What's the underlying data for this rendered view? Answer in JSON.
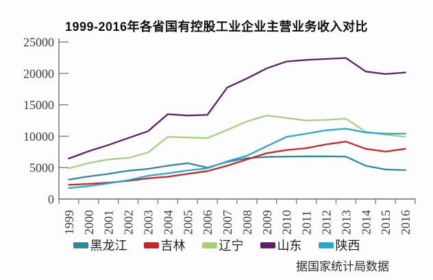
{
  "title": "1999-2016年各省国有控股工业企业主营业务收入对比",
  "source_note": "据国家统计局数据",
  "chart_data": {
    "type": "line",
    "x": [
      "1999",
      "2000",
      "2001",
      "2002",
      "2003",
      "2004",
      "2005",
      "2006",
      "2007",
      "2008",
      "2009",
      "2010",
      "2011",
      "2012",
      "2013",
      "2014",
      "2015",
      "2016"
    ],
    "ylim": [
      0,
      25000
    ],
    "yticks": [
      0,
      5000,
      10000,
      15000,
      20000,
      25000
    ],
    "grid": false,
    "legend_position": "bottom",
    "series": [
      {
        "name": "黑龙江",
        "slug": "heilongjiang",
        "color": "#2e8b96",
        "values": [
          3100,
          3600,
          4000,
          4500,
          4800,
          5300,
          5700,
          5000,
          5900,
          6500,
          6700,
          6750,
          6800,
          6800,
          6750,
          5300,
          4700,
          4600
        ]
      },
      {
        "name": "吉林",
        "slug": "jilin",
        "color": "#c9242b",
        "values": [
          2250,
          2400,
          2600,
          2900,
          3300,
          3550,
          4000,
          4450,
          5300,
          6300,
          7300,
          7800,
          8100,
          8700,
          9150,
          8000,
          7550,
          8000
        ]
      },
      {
        "name": "辽宁",
        "slug": "liaoning",
        "color": "#a9cd80",
        "values": [
          4900,
          5700,
          6300,
          6550,
          7400,
          9900,
          9800,
          9700,
          11000,
          12350,
          13300,
          12900,
          12500,
          12600,
          12800,
          10700,
          10250,
          9900
        ]
      },
      {
        "name": "山东",
        "slug": "shandong",
        "color": "#5a2166",
        "values": [
          6450,
          7600,
          8600,
          9700,
          10800,
          13500,
          13300,
          13400,
          17750,
          19200,
          20800,
          21900,
          22150,
          22300,
          22450,
          20300,
          19900,
          20150
        ]
      },
      {
        "name": "陕西",
        "slug": "shaanxi",
        "color": "#2aa7d1",
        "values": [
          1750,
          2050,
          2500,
          3000,
          3700,
          4100,
          4550,
          4900,
          6000,
          6900,
          8400,
          9900,
          10400,
          10950,
          11200,
          10600,
          10400,
          10400
        ]
      }
    ]
  }
}
